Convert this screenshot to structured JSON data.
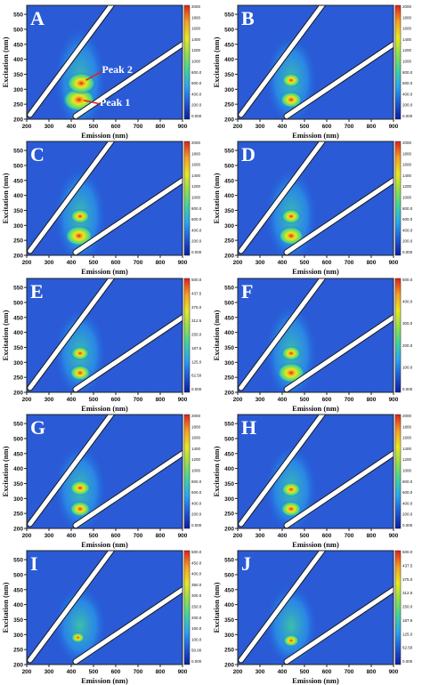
{
  "chart_data": {
    "type": "heatmap",
    "subtype": "excitation-emission matrix contour maps",
    "layout": "5 rows x 2 columns",
    "xlabel": "Emission (nm)",
    "ylabel": "Excitation (nm)",
    "xticks": [
      200,
      300,
      400,
      500,
      600,
      700,
      800,
      900
    ],
    "yticks": [
      200,
      250,
      300,
      350,
      400,
      450,
      500,
      550
    ],
    "xlim": [
      200,
      900
    ],
    "ylim": [
      200,
      580
    ],
    "colormap": [
      "#0c1f9e",
      "#1e5ad8",
      "#2aa4f0",
      "#3fd1a0",
      "#8fe04a",
      "#e8e820",
      "#f5a020",
      "#e02020"
    ],
    "background_color": "#2a5ad6",
    "panels": [
      {
        "letter": "A",
        "colorbar": [
          "2000",
          "1800",
          "1600",
          "1400",
          "1200",
          "1000",
          "800.0",
          "600.0",
          "400.0",
          "200.0",
          "0.000"
        ],
        "peaks": [
          {
            "em": 435,
            "ex": 265,
            "intensity": 1.0
          },
          {
            "em": 445,
            "ex": 320,
            "intensity": 0.85
          }
        ],
        "annotations": [
          {
            "text": "Peak 2",
            "em": 450,
            "ex": 330
          },
          {
            "text": "Peak 1",
            "em": 440,
            "ex": 263
          }
        ]
      },
      {
        "letter": "B",
        "colorbar": [
          "2000",
          "1800",
          "1600",
          "1400",
          "1200",
          "1000",
          "800.0",
          "600.0",
          "400.0",
          "200.0",
          "0.000"
        ],
        "peaks": [
          {
            "em": 440,
            "ex": 265,
            "intensity": 0.55
          },
          {
            "em": 440,
            "ex": 330,
            "intensity": 0.4
          }
        ],
        "annotations": []
      },
      {
        "letter": "C",
        "colorbar": [
          "2000",
          "1800",
          "1600",
          "1400",
          "1200",
          "1000",
          "800.0",
          "600.0",
          "400.0",
          "200.0",
          "0.000"
        ],
        "peaks": [
          {
            "em": 435,
            "ex": 265,
            "intensity": 0.8
          },
          {
            "em": 440,
            "ex": 330,
            "intensity": 0.45
          }
        ],
        "annotations": []
      },
      {
        "letter": "D",
        "colorbar": [
          "2000",
          "1800",
          "1600",
          "1400",
          "1200",
          "1000",
          "800.0",
          "600.0",
          "400.0",
          "200.0",
          "0.000"
        ],
        "peaks": [
          {
            "em": 440,
            "ex": 265,
            "intensity": 0.7
          },
          {
            "em": 440,
            "ex": 330,
            "intensity": 0.45
          }
        ],
        "annotations": []
      },
      {
        "letter": "E",
        "colorbar": [
          "500.0",
          "437.5",
          "375.0",
          "312.5",
          "250.0",
          "187.5",
          "125.0",
          "62.50",
          "0.000"
        ],
        "peaks": [
          {
            "em": 440,
            "ex": 265,
            "intensity": 0.5
          },
          {
            "em": 440,
            "ex": 330,
            "intensity": 0.4
          }
        ],
        "annotations": []
      },
      {
        "letter": "F",
        "colorbar": [
          "500.0",
          "400.0",
          "300.0",
          "200.0",
          "100.0",
          "0.000"
        ],
        "peaks": [
          {
            "em": 440,
            "ex": 265,
            "intensity": 0.8
          },
          {
            "em": 440,
            "ex": 330,
            "intensity": 0.45
          }
        ],
        "annotations": []
      },
      {
        "letter": "G",
        "colorbar": [
          "2000",
          "1800",
          "1600",
          "1400",
          "1200",
          "1000",
          "800.0",
          "600.0",
          "400.0",
          "200.0",
          "0.000"
        ],
        "peaks": [
          {
            "em": 440,
            "ex": 265,
            "intensity": 0.5
          },
          {
            "em": 440,
            "ex": 335,
            "intensity": 0.5
          }
        ],
        "annotations": []
      },
      {
        "letter": "H",
        "colorbar": [
          "2000",
          "1800",
          "1600",
          "1400",
          "1200",
          "1000",
          "800.0",
          "600.0",
          "400.0",
          "200.0",
          "0.000"
        ],
        "peaks": [
          {
            "em": 440,
            "ex": 265,
            "intensity": 0.5
          },
          {
            "em": 440,
            "ex": 330,
            "intensity": 0.45
          }
        ],
        "annotations": []
      },
      {
        "letter": "I",
        "colorbar": [
          "500.0",
          "450.0",
          "400.0",
          "350.0",
          "300.0",
          "250.0",
          "200.0",
          "150.0",
          "100.0",
          "50.00",
          "0.000"
        ],
        "peaks": [
          {
            "em": 430,
            "ex": 290,
            "intensity": 0.2
          }
        ],
        "annotations": []
      },
      {
        "letter": "J",
        "colorbar": [
          "500.0",
          "437.5",
          "375.0",
          "312.5",
          "250.0",
          "187.5",
          "125.0",
          "62.50",
          "0.000"
        ],
        "peaks": [
          {
            "em": 440,
            "ex": 280,
            "intensity": 0.3
          }
        ],
        "annotations": []
      }
    ]
  }
}
